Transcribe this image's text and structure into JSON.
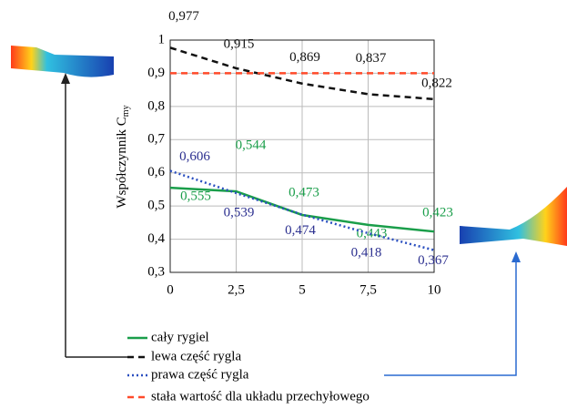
{
  "chart_data": {
    "type": "line",
    "y_label": {
      "text": "Współczynnik C",
      "subscript": "my"
    },
    "x": [
      0,
      2.5,
      5,
      7.5,
      10
    ],
    "xlim": [
      0,
      10
    ],
    "xticks": [
      0,
      {
        "value": 2.5,
        "label": "2,5"
      },
      5,
      {
        "value": 7.5,
        "label": "7,5"
      },
      10
    ],
    "ylim": [
      0.3,
      1
    ],
    "yticks": [
      {
        "value": 0.3,
        "label": "0,3"
      },
      {
        "value": 0.4,
        "label": "0,4"
      },
      {
        "value": 0.5,
        "label": "0,5"
      },
      {
        "value": 0.6,
        "label": "0,6"
      },
      {
        "value": 0.7,
        "label": "0,7"
      },
      {
        "value": 0.8,
        "label": "0,8"
      },
      {
        "value": 0.9,
        "label": "0,9"
      },
      1
    ],
    "grid": true,
    "series": [
      {
        "name": "cały rygiel",
        "color": "#1a9e4a",
        "style": "solid",
        "values": [
          0.555,
          0.544,
          0.473,
          0.443,
          0.423
        ],
        "value_labels": [
          "0,555",
          "0,544",
          "0,473",
          "0,443",
          "0,423"
        ]
      },
      {
        "name": "lewa część rygla",
        "color": "#111111",
        "style": "dashed",
        "values": [
          0.977,
          0.915,
          0.869,
          0.837,
          0.822
        ],
        "value_labels": [
          "0,977",
          "0,915",
          "0,869",
          "0,837",
          "0,822"
        ]
      },
      {
        "name": "prawa część rygla",
        "color": "#2a4fc0",
        "style": "dotted",
        "values": [
          0.606,
          0.539,
          0.474,
          0.418,
          0.367
        ],
        "value_labels": [
          "0,606",
          "0,539",
          "0,474",
          "0,418",
          "0,367"
        ]
      },
      {
        "name": "stała wartość dla układu przechyłowego",
        "color": "#ff4a2a",
        "style": "dashed",
        "values": [
          0.9,
          0.9,
          0.9,
          0.9,
          0.9
        ]
      }
    ]
  }
}
